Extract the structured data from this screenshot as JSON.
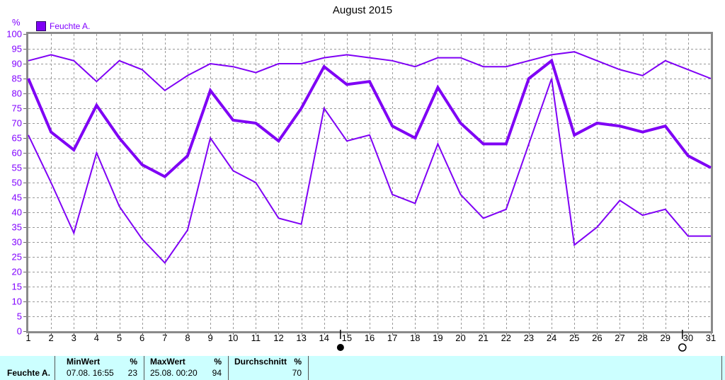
{
  "title": "August 2015",
  "legend": {
    "label": "Feuchte A.",
    "color": "#7f00f5"
  },
  "y_axis": {
    "unit": "%"
  },
  "chart_data": {
    "type": "line",
    "title": "August 2015",
    "x": [
      1,
      2,
      3,
      4,
      5,
      6,
      7,
      8,
      9,
      10,
      11,
      12,
      13,
      14,
      15,
      16,
      17,
      18,
      19,
      20,
      21,
      22,
      23,
      24,
      25,
      26,
      27,
      28,
      29,
      30,
      31
    ],
    "series": [
      {
        "name": "max",
        "width": 2,
        "values": [
          91,
          93,
          91,
          84,
          91,
          88,
          81,
          86,
          90,
          89,
          87,
          90,
          90,
          92,
          93,
          92,
          91,
          89,
          92,
          92,
          89,
          89,
          91,
          93,
          94,
          91,
          88,
          86,
          91,
          88,
          85
        ]
      },
      {
        "name": "avg",
        "width": 4,
        "values": [
          85,
          67,
          61,
          76,
          65,
          56,
          52,
          59,
          81,
          71,
          70,
          64,
          75,
          89,
          83,
          84,
          69,
          65,
          82,
          70,
          63,
          63,
          85,
          91,
          66,
          70,
          69,
          67,
          69,
          59,
          55
        ]
      },
      {
        "name": "min",
        "width": 2,
        "values": [
          66,
          50,
          33,
          60,
          42,
          31,
          23,
          34,
          65,
          54,
          50,
          38,
          36,
          75,
          64,
          66,
          46,
          43,
          63,
          46,
          38,
          41,
          63,
          85,
          29,
          35,
          44,
          39,
          41,
          32,
          32
        ]
      }
    ],
    "ylim": [
      0,
      100
    ],
    "ytick_step": 5,
    "xlim": [
      1,
      31
    ],
    "grid": true,
    "legend_position": "top-left",
    "line_color": "#7f00f5",
    "axis_label_color": "#8000ff",
    "tick_label_color": "#000000",
    "grid_color": "#999999",
    "frame_color": "#8a8a8a",
    "unit": "%",
    "markers": [
      {
        "type": "new-moon",
        "day": 14.72
      },
      {
        "type": "full-moon",
        "day": 29.75
      }
    ]
  },
  "table": {
    "row_label": "Feuchte A.",
    "columns": [
      {
        "header": "MinWert",
        "unit_header": "%",
        "value": "07.08.  16:55",
        "unit_value": "23"
      },
      {
        "header": "MaxWert",
        "unit_header": "%",
        "value": "25.08.  00:20",
        "unit_value": "94"
      },
      {
        "header": "Durchschnitt",
        "unit_header": "%",
        "value": "",
        "unit_value": "70"
      }
    ]
  }
}
